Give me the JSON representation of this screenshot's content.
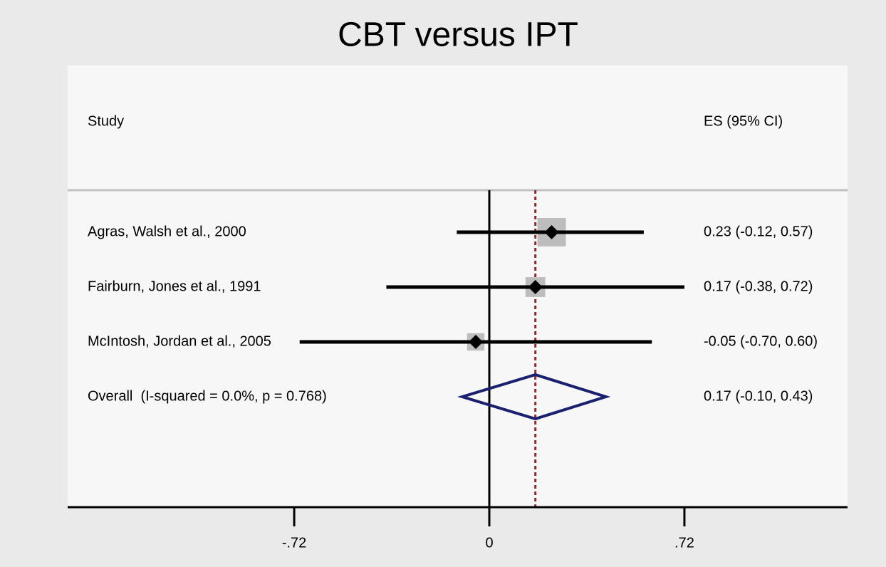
{
  "chart_data": {
    "type": "forest",
    "title": "CBT versus IPT",
    "study_header": "Study",
    "es_header": "ES (95% CI)",
    "categories": [
      "Agras, Walsh et al., 2000",
      "Fairburn, Jones et al., 1991",
      "McIntosh, Jordan et al., 2005"
    ],
    "values": [
      0.23,
      0.17,
      -0.05
    ],
    "lower": [
      -0.12,
      -0.38,
      -0.7
    ],
    "upper": [
      0.57,
      0.72,
      0.6
    ],
    "value_labels": [
      "0.23 (-0.12, 0.57)",
      "0.17 (-0.38, 0.72)",
      "-0.05 (-0.70, 0.60)"
    ],
    "weights": [
      54,
      26,
      20
    ],
    "overall": {
      "label": "Overall  (I-squared = 0.0%, p = 0.768)",
      "value": 0.17,
      "lower": -0.1,
      "upper": 0.43,
      "value_label": "0.17 (-0.10, 0.43)"
    },
    "xlim": [
      -1.556,
      1.322
    ],
    "xticks": [
      {
        "value": -0.72,
        "label": "-.72"
      },
      0,
      {
        "value": 0.72,
        "label": ".72"
      }
    ],
    "box_color": "#bdbdbd",
    "line_color": "#000000",
    "diamond_color": "#1a1f6e",
    "overall_line_color": "#8b2c2c"
  }
}
